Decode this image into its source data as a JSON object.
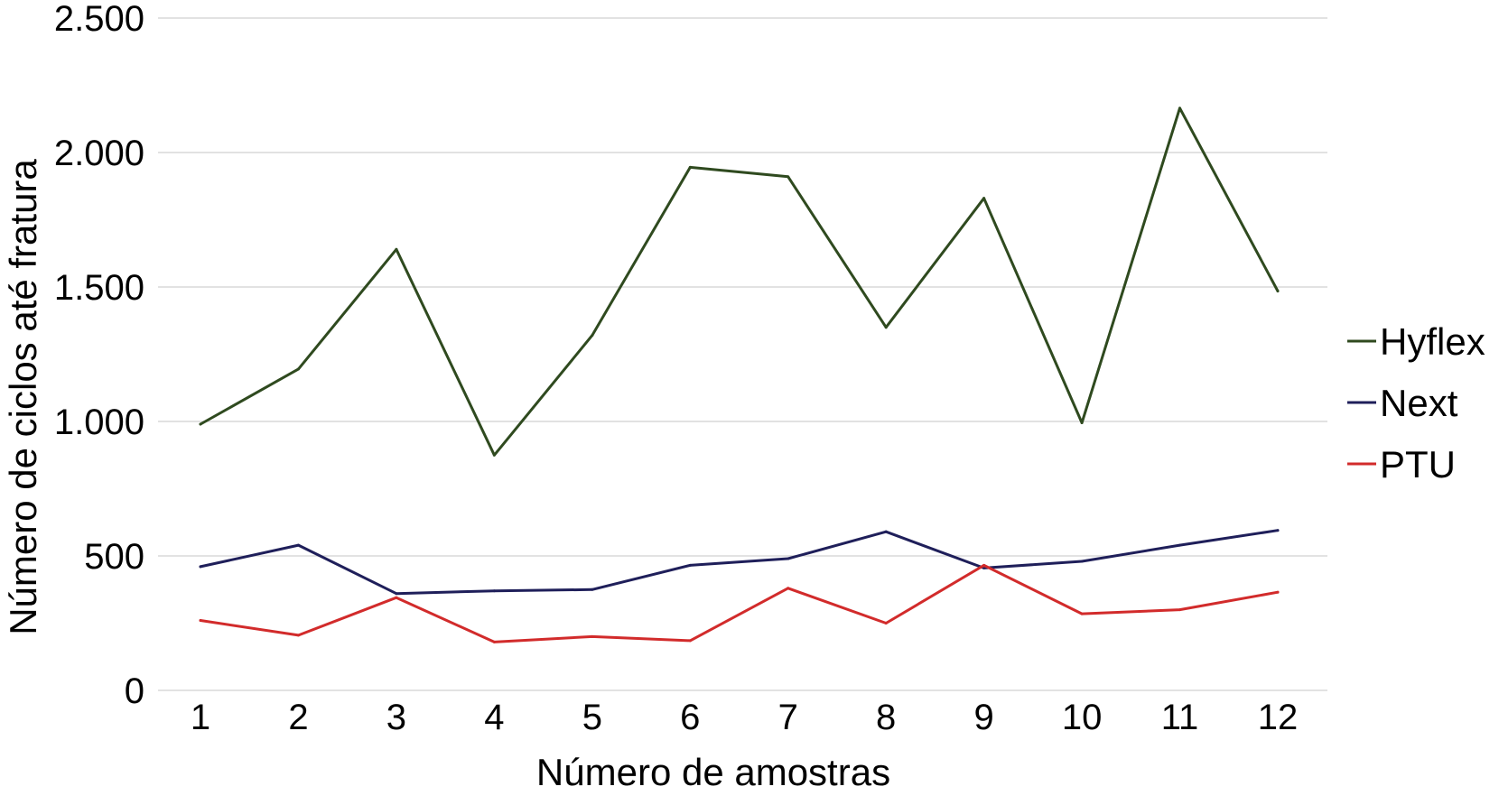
{
  "chart_data": {
    "type": "line",
    "title": "",
    "xlabel": "Número de amostras",
    "ylabel": "Número de ciclos até fratura",
    "categories": [
      "1",
      "2",
      "3",
      "4",
      "5",
      "6",
      "7",
      "8",
      "9",
      "10",
      "11",
      "12"
    ],
    "ylim": [
      0,
      2500
    ],
    "yticks": [
      {
        "value": 0,
        "label": "0"
      },
      {
        "value": 500,
        "label": "500"
      },
      {
        "value": 1000,
        "label": "1.000"
      },
      {
        "value": 1500,
        "label": "1.500"
      },
      {
        "value": 2000,
        "label": "2.000"
      },
      {
        "value": 2500,
        "label": "2.500"
      }
    ],
    "grid": true,
    "legend_position": "right",
    "series": [
      {
        "name": "Hyflex",
        "color": "#2f4a1f",
        "values": [
          990,
          1195,
          1640,
          875,
          1320,
          1945,
          1910,
          1350,
          1830,
          995,
          2165,
          1485
        ]
      },
      {
        "name": "Next",
        "color": "#1f1f5a",
        "values": [
          460,
          540,
          360,
          370,
          375,
          465,
          490,
          590,
          455,
          480,
          540,
          595
        ]
      },
      {
        "name": "PTU",
        "color": "#d22b2b",
        "values": [
          260,
          205,
          345,
          180,
          200,
          185,
          380,
          250,
          465,
          285,
          300,
          365
        ]
      }
    ]
  }
}
